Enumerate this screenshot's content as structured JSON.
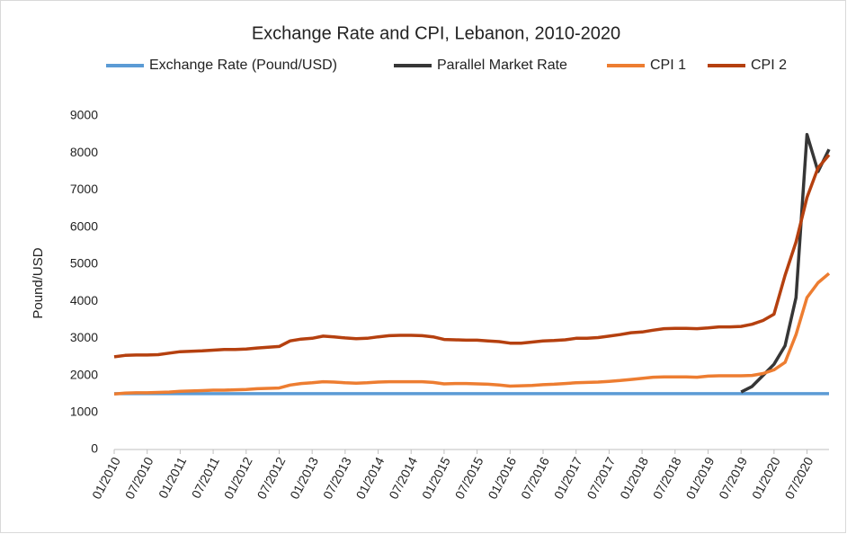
{
  "chart_data": {
    "type": "line",
    "title": "Exchange Rate and CPI, Lebanon, 2010-2020",
    "y_label": "Pound/USD",
    "categories": [
      "01/2010",
      null,
      null,
      "07/2010",
      null,
      null,
      "01/2011",
      null,
      null,
      "07/2011",
      null,
      null,
      "01/2012",
      null,
      null,
      "07/2012",
      null,
      null,
      "01/2013",
      null,
      null,
      "07/2013",
      null,
      null,
      "01/2014",
      null,
      null,
      "07/2014",
      null,
      null,
      "01/2015",
      null,
      null,
      "07/2015",
      null,
      null,
      "01/2016",
      null,
      null,
      "07/2016",
      null,
      null,
      "01/2017",
      null,
      null,
      "07/2017",
      null,
      null,
      "01/2018",
      null,
      null,
      "07/2018",
      null,
      null,
      "01/2019",
      null,
      null,
      "07/2019",
      null,
      null,
      "01/2020",
      null,
      null,
      "07/2020",
      null,
      null
    ],
    "series": [
      {
        "name": "Exchange Rate (Pound/USD)",
        "color": "#5b9bd5",
        "values": [
          1507.5,
          1507.5,
          1507.5,
          1507.5,
          1507.5,
          1507.5,
          1507.5,
          1507.5,
          1507.5,
          1507.5,
          1507.5,
          1507.5,
          1507.5,
          1507.5,
          1507.5,
          1507.5,
          1507.5,
          1507.5,
          1507.5,
          1507.5,
          1507.5,
          1507.5,
          1507.5,
          1507.5,
          1507.5,
          1507.5,
          1507.5,
          1507.5,
          1507.5,
          1507.5,
          1507.5,
          1507.5,
          1507.5,
          1507.5,
          1507.5,
          1507.5,
          1507.5,
          1507.5,
          1507.5,
          1507.5,
          1507.5,
          1507.5,
          1507.5,
          1507.5,
          1507.5,
          1507.5,
          1507.5,
          1507.5,
          1507.5,
          1507.5,
          1507.5,
          1507.5,
          1507.5,
          1507.5,
          1507.5,
          1507.5,
          1507.5,
          1507.5,
          1507.5,
          1507.5,
          1507.5,
          1507.5,
          1507.5,
          1507.5,
          1507.5,
          1507.5
        ]
      },
      {
        "name": "Parallel Market Rate",
        "color": "#363636",
        "values": [
          null,
          null,
          null,
          null,
          null,
          null,
          null,
          null,
          null,
          null,
          null,
          null,
          null,
          null,
          null,
          null,
          null,
          null,
          null,
          null,
          null,
          null,
          null,
          null,
          null,
          null,
          null,
          null,
          null,
          null,
          null,
          null,
          null,
          null,
          null,
          null,
          null,
          null,
          null,
          null,
          null,
          null,
          null,
          null,
          null,
          null,
          null,
          null,
          null,
          null,
          null,
          null,
          null,
          null,
          null,
          null,
          null,
          1550,
          1700,
          2000,
          2300,
          2800,
          4100,
          8500,
          7500,
          8100
        ]
      },
      {
        "name": "CPI 1",
        "color": "#ed7d31",
        "values": [
          1500,
          1520,
          1530,
          1530,
          1540,
          1550,
          1570,
          1580,
          1590,
          1600,
          1600,
          1610,
          1620,
          1640,
          1650,
          1660,
          1740,
          1780,
          1800,
          1830,
          1820,
          1800,
          1790,
          1800,
          1820,
          1830,
          1830,
          1830,
          1830,
          1810,
          1770,
          1780,
          1780,
          1770,
          1760,
          1740,
          1710,
          1720,
          1730,
          1750,
          1760,
          1780,
          1800,
          1810,
          1820,
          1840,
          1860,
          1890,
          1920,
          1950,
          1960,
          1960,
          1960,
          1950,
          1980,
          1990,
          1990,
          1990,
          2000,
          2050,
          2150,
          2350,
          3100,
          4100,
          4500,
          4750
        ]
      },
      {
        "name": "CPI 2",
        "color": "#b5400f",
        "values": [
          2500,
          2540,
          2550,
          2550,
          2560,
          2600,
          2640,
          2650,
          2660,
          2680,
          2700,
          2700,
          2710,
          2740,
          2760,
          2780,
          2930,
          2980,
          3000,
          3060,
          3040,
          3010,
          2990,
          3000,
          3040,
          3070,
          3080,
          3080,
          3070,
          3040,
          2970,
          2960,
          2950,
          2950,
          2930,
          2910,
          2870,
          2870,
          2900,
          2930,
          2940,
          2960,
          3000,
          3000,
          3020,
          3060,
          3100,
          3150,
          3170,
          3220,
          3260,
          3270,
          3270,
          3260,
          3280,
          3310,
          3310,
          3320,
          3380,
          3480,
          3650,
          4700,
          5600,
          6800,
          7600,
          7950
        ]
      }
    ],
    "ylim": [
      0,
      9000
    ],
    "yticks": [
      0,
      1000,
      2000,
      3000,
      4000,
      5000,
      6000,
      7000,
      8000,
      9000
    ],
    "grid": false
  }
}
